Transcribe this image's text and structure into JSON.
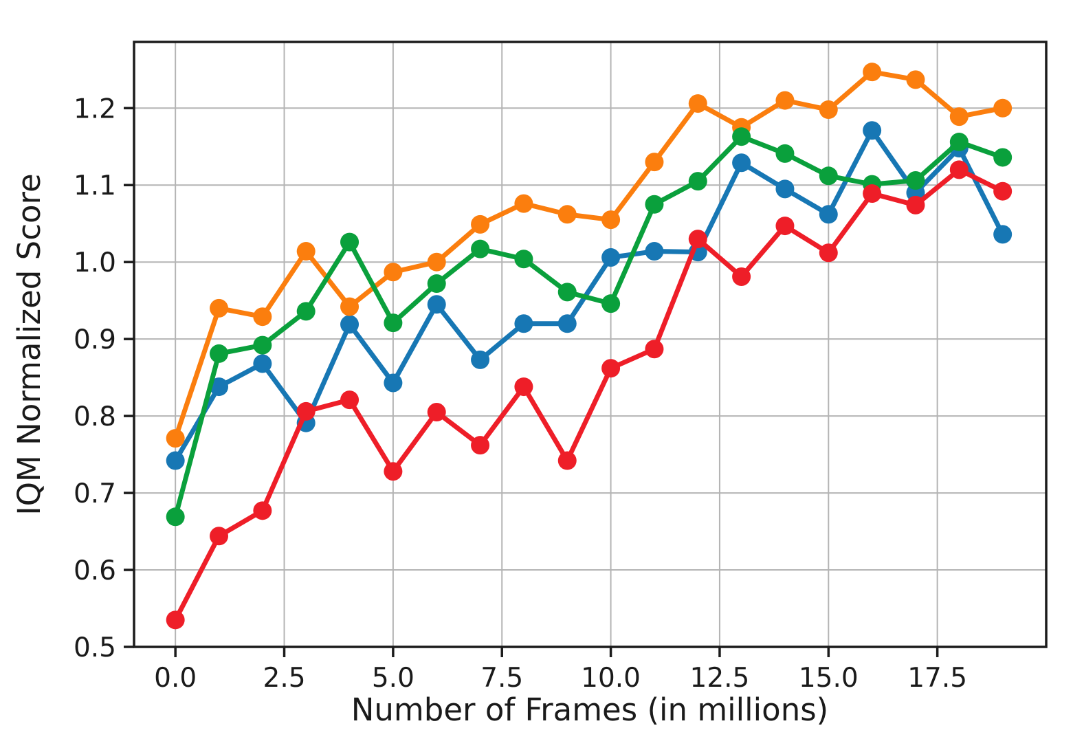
{
  "figure": {
    "title": "",
    "legend": null
  },
  "chart_data": {
    "type": "line",
    "title": "",
    "xlabel": "Number of Frames (in millions)",
    "ylabel": "IQM Normalized Score",
    "grid": true,
    "legend_position": "none",
    "marker": "circle",
    "xlim": [
      -0.95,
      20.0
    ],
    "ylim": [
      0.5,
      1.286
    ],
    "xticks": {
      "values": [
        0,
        2.5,
        5,
        7.5,
        10,
        12.5,
        15,
        17.5
      ],
      "labels": [
        "0.0",
        "2.5",
        "5.0",
        "7.5",
        "10.0",
        "12.5",
        "15.0",
        "17.5"
      ]
    },
    "yticks": {
      "values": [
        0.5,
        0.6,
        0.7,
        0.8,
        0.9,
        1.0,
        1.1,
        1.2
      ],
      "labels": [
        "0.5",
        "0.6",
        "0.7",
        "0.8",
        "0.9",
        "1.0",
        "1.1",
        "1.2"
      ]
    },
    "x": [
      0,
      1,
      2,
      3,
      4,
      5,
      6,
      7,
      8,
      9,
      10,
      11,
      12,
      13,
      14,
      15,
      16,
      17,
      18,
      19
    ],
    "series": [
      {
        "name": "blue",
        "color": "#1777b4",
        "values": [
          0.742,
          0.838,
          0.868,
          0.791,
          0.919,
          0.843,
          0.945,
          0.873,
          0.92,
          0.92,
          1.006,
          1.014,
          1.013,
          1.129,
          1.095,
          1.062,
          1.171,
          1.09,
          1.148,
          1.036
        ]
      },
      {
        "name": "orange",
        "color": "#fb7e0e",
        "values": [
          0.771,
          0.94,
          0.929,
          1.014,
          0.942,
          0.987,
          1.0,
          1.049,
          1.076,
          1.062,
          1.055,
          1.13,
          1.206,
          1.175,
          1.21,
          1.198,
          1.247,
          1.237,
          1.189,
          1.2
        ]
      },
      {
        "name": "green",
        "color": "#0aa03c",
        "values": [
          0.669,
          0.881,
          0.892,
          0.936,
          1.026,
          0.921,
          0.972,
          1.017,
          1.004,
          0.961,
          0.946,
          1.075,
          1.105,
          1.163,
          1.141,
          1.112,
          1.101,
          1.106,
          1.156,
          1.136
        ]
      },
      {
        "name": "red",
        "color": "#ee1e28",
        "values": [
          0.535,
          0.644,
          0.677,
          0.806,
          0.821,
          0.728,
          0.805,
          0.762,
          0.838,
          0.742,
          0.862,
          0.887,
          1.03,
          0.981,
          1.047,
          1.012,
          1.089,
          1.074,
          1.12,
          1.092
        ]
      }
    ]
  }
}
